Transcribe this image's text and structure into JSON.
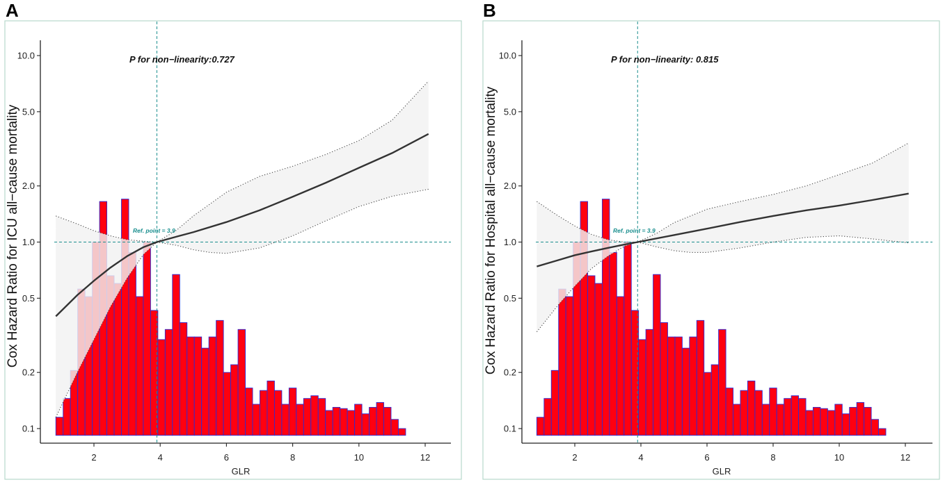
{
  "colors": {
    "bar_fill": "#ff0010",
    "bar_stroke": "#2b2bd6",
    "curve": "#333333",
    "ci_fill": "#f2f2f2",
    "ci_line": "#444444",
    "ref_line": "#1a8e8e",
    "frame": "#b7d9cc",
    "axis": "#222222"
  },
  "chart_data": [
    {
      "panel": "A",
      "type": "line",
      "title": "P for non−linearity:0.727",
      "xlabel": "GLR",
      "ylabel": "Cox Hazard Ratio for ICU all−cause mortality",
      "y_scale": "log",
      "xlim": [
        0.6,
        12.3
      ],
      "ylim": [
        0.09,
        13.5
      ],
      "x_ticks": [
        2,
        4,
        6,
        8,
        10,
        12
      ],
      "x_tick_labels": [
        "2",
        "4",
        "6",
        "8",
        "10",
        "12"
      ],
      "y_ticks": [
        0.1,
        0.2,
        0.5,
        1.0,
        2.0,
        5.0,
        10.0
      ],
      "y_tick_labels": [
        "0.1",
        "0.2",
        "0.5",
        "1.0",
        "2.0",
        "5.0",
        "10.0"
      ],
      "ref_point_label": "Ref. point = 3.9",
      "ref_x": 3.9,
      "ref_y": 1.0,
      "series": [
        {
          "name": "HR",
          "x": [
            0.85,
            1.5,
            2.0,
            2.5,
            3.0,
            3.5,
            3.9,
            4.5,
            5.0,
            6.0,
            7.0,
            8.0,
            9.0,
            10.0,
            11.0,
            12.1
          ],
          "values": [
            0.4,
            0.52,
            0.62,
            0.73,
            0.84,
            0.94,
            1.0,
            1.07,
            1.13,
            1.28,
            1.48,
            1.75,
            2.08,
            2.5,
            3.0,
            3.8
          ]
        },
        {
          "name": "Lower 95% CI",
          "x": [
            0.85,
            1.5,
            2.0,
            2.5,
            3.0,
            3.5,
            3.9,
            4.5,
            5.0,
            5.5,
            6.0,
            7.0,
            8.0,
            9.0,
            10.0,
            11.0,
            12.1
          ],
          "values": [
            0.115,
            0.2,
            0.3,
            0.45,
            0.64,
            0.86,
            1.0,
            0.96,
            0.91,
            0.88,
            0.87,
            0.93,
            1.08,
            1.3,
            1.55,
            1.76,
            1.92
          ]
        },
        {
          "name": "Upper 95% CI",
          "x": [
            0.85,
            1.5,
            2.0,
            2.5,
            3.0,
            3.5,
            3.9,
            4.5,
            5.0,
            6.0,
            7.0,
            8.0,
            9.0,
            10.0,
            11.0,
            12.1
          ],
          "values": [
            1.38,
            1.25,
            1.15,
            1.08,
            1.03,
            1.01,
            1.0,
            1.16,
            1.38,
            1.85,
            2.25,
            2.55,
            2.95,
            3.5,
            4.5,
            7.3
          ]
        }
      ],
      "histogram": {
        "x_start": 0.85,
        "bin_width": 0.22,
        "heights": [
          0.115,
          0.145,
          0.205,
          0.56,
          0.51,
          1.0,
          1.65,
          0.66,
          0.6,
          1.7,
          0.88,
          0.51,
          1.0,
          0.43,
          0.3,
          0.34,
          0.67,
          0.37,
          0.31,
          0.31,
          0.27,
          0.31,
          0.38,
          0.2,
          0.22,
          0.34,
          0.165,
          0.135,
          0.16,
          0.18,
          0.16,
          0.135,
          0.165,
          0.135,
          0.145,
          0.15,
          0.145,
          0.125,
          0.13,
          0.128,
          0.125,
          0.135,
          0.12,
          0.13,
          0.138,
          0.13,
          0.112,
          0.1
        ]
      }
    },
    {
      "panel": "B",
      "type": "line",
      "title": "P for non−linearity: 0.815",
      "xlabel": "GLR",
      "ylabel": "Cox Hazard Ratio for Hospital all−cause mortality",
      "y_scale": "log",
      "xlim": [
        0.6,
        12.3
      ],
      "ylim": [
        0.09,
        13.5
      ],
      "x_ticks": [
        2,
        4,
        6,
        8,
        10,
        12
      ],
      "x_tick_labels": [
        "2",
        "4",
        "6",
        "8",
        "10",
        "12"
      ],
      "y_ticks": [
        0.1,
        0.2,
        0.5,
        1.0,
        2.0,
        5.0,
        10.0
      ],
      "y_tick_labels": [
        "0.1",
        "0.2",
        "0.5",
        "1.0",
        "2.0",
        "5.0",
        "10.0"
      ],
      "ref_point_label": "Ref. point = 3.9",
      "ref_x": 3.9,
      "ref_y": 1.0,
      "series": [
        {
          "name": "HR",
          "x": [
            0.85,
            1.5,
            2.0,
            2.5,
            3.0,
            3.5,
            3.9,
            5.0,
            6.0,
            7.0,
            8.0,
            9.0,
            10.0,
            11.0,
            12.1
          ],
          "values": [
            0.74,
            0.8,
            0.85,
            0.89,
            0.93,
            0.97,
            1.0,
            1.09,
            1.18,
            1.28,
            1.38,
            1.48,
            1.57,
            1.68,
            1.82
          ]
        },
        {
          "name": "Lower 95% CI",
          "x": [
            0.85,
            1.5,
            2.0,
            2.5,
            3.0,
            3.5,
            3.9,
            4.5,
            5.0,
            5.5,
            6.0,
            7.0,
            8.0,
            9.0,
            10.0,
            11.0,
            12.1
          ],
          "values": [
            0.33,
            0.46,
            0.58,
            0.72,
            0.84,
            0.95,
            1.0,
            0.94,
            0.9,
            0.88,
            0.88,
            0.93,
            1.0,
            1.06,
            1.08,
            1.04,
            0.99
          ]
        },
        {
          "name": "Upper 95% CI",
          "x": [
            0.85,
            1.5,
            2.0,
            2.5,
            3.0,
            3.5,
            3.9,
            4.5,
            5.0,
            6.0,
            7.0,
            8.0,
            9.0,
            10.0,
            11.0,
            12.1
          ],
          "values": [
            1.65,
            1.38,
            1.22,
            1.1,
            1.03,
            1.0,
            1.0,
            1.12,
            1.27,
            1.5,
            1.65,
            1.8,
            2.0,
            2.3,
            2.65,
            3.4
          ]
        }
      ],
      "histogram": {
        "x_start": 0.85,
        "bin_width": 0.22,
        "heights": [
          0.115,
          0.145,
          0.205,
          0.56,
          0.51,
          1.0,
          1.65,
          0.66,
          0.6,
          1.7,
          0.88,
          0.51,
          1.0,
          0.43,
          0.3,
          0.34,
          0.67,
          0.37,
          0.31,
          0.31,
          0.27,
          0.31,
          0.38,
          0.2,
          0.22,
          0.34,
          0.165,
          0.135,
          0.16,
          0.18,
          0.16,
          0.135,
          0.165,
          0.135,
          0.145,
          0.15,
          0.145,
          0.125,
          0.13,
          0.128,
          0.125,
          0.135,
          0.12,
          0.13,
          0.138,
          0.13,
          0.112,
          0.1
        ]
      }
    }
  ]
}
